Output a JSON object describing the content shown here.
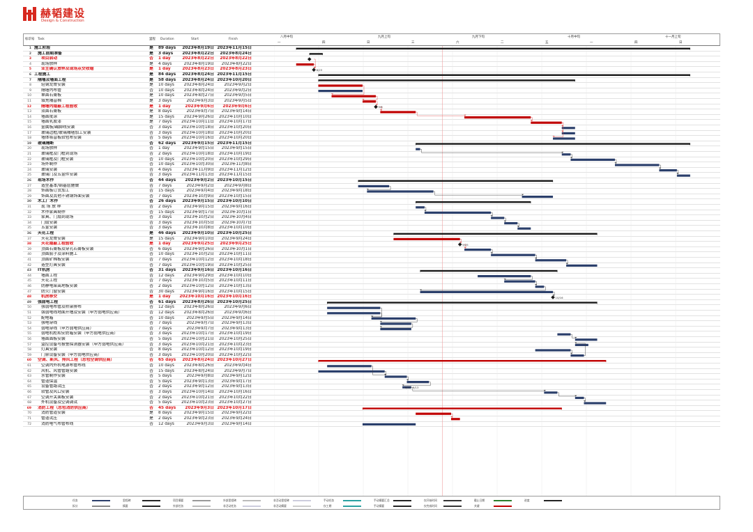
{
  "brand": {
    "name": "赫韬建设",
    "sub": "Design & Construction",
    "color": "#d7281e"
  },
  "headers": {
    "id": "标识号",
    "task": "Task",
    "ms": "里程",
    "duration": "Duration",
    "start": "Start",
    "finish": "Finish"
  },
  "timescale": {
    "top": [
      "八月中旬",
      "九月上旬",
      "九月下旬",
      "十月中旬",
      "十一月上旬"
    ],
    "bottom": [
      "一",
      "四",
      "日",
      "三",
      "六",
      "二",
      "五",
      "一",
      "四",
      "日"
    ]
  },
  "colors": {
    "normal": "#2b3f6b",
    "critical": "#c00000",
    "summary": "#1a1a1a",
    "link": "#444",
    "critlink": "#e05050",
    "today": "#c00000"
  },
  "rows": [
    {
      "id": "1",
      "name": "施工阶段",
      "ms": "是",
      "dur": "89 days",
      "start": "2023年8月19日",
      "finish": "2023年11月15日",
      "type": "summary"
    },
    {
      "id": "2",
      "name": "施工前期准备",
      "ms": "是",
      "dur": "3 days",
      "start": "2023年8月22日",
      "finish": "2023年8月24日",
      "type": "summary"
    },
    {
      "id": "3",
      "name": "项目启动",
      "ms": "否",
      "dur": "1 day",
      "start": "2023年8月22日",
      "finish": "2023年8月22日",
      "type": "critical"
    },
    {
      "id": "4",
      "name": "现场放样",
      "ms": "是",
      "dur": "4 days",
      "start": "2023年8月19日",
      "finish": "2023年8月22日",
      "type": "critical-task"
    },
    {
      "id": "5",
      "name": "业主确认放样及现场点交收缩",
      "ms": "是",
      "dur": "1 day",
      "start": "2023年8月23日",
      "finish": "2023年8月23日",
      "type": "critical"
    },
    {
      "id": "6",
      "name": "工程施工",
      "ms": "是",
      "dur": "84 days",
      "start": "2023年8月24日",
      "finish": "2023年11月15日",
      "type": "summary"
    },
    {
      "id": "7",
      "name": "隔墙及墙面工程",
      "ms": "是",
      "dur": "58 days",
      "start": "2023年8月24日",
      "finish": "2023年10月20日",
      "type": "summary"
    },
    {
      "id": "8",
      "name": "轻钢龙骨安装",
      "ms": "是",
      "dur": "10 days",
      "start": "2023年8月24日",
      "finish": "2023年9月2日",
      "type": "critical-task"
    },
    {
      "id": "9",
      "name": "隔墙内布管",
      "ms": "否",
      "dur": "10 days",
      "start": "2023年8月24日",
      "finish": "2023年9月2日",
      "type": "task"
    },
    {
      "id": "10",
      "name": "单面石膏板",
      "ms": "是",
      "dur": "10 days",
      "start": "2023年8月27日",
      "finish": "2023年9月5日",
      "type": "critical-task"
    },
    {
      "id": "11",
      "name": "填充隔音棉",
      "ms": "是",
      "dur": "3 days",
      "start": "2023年9月3日",
      "finish": "2023年9月5日",
      "type": "critical-task"
    },
    {
      "id": "12",
      "name": "隔墙内隐蔽工程验收",
      "ms": "是",
      "dur": "1 day",
      "start": "2023年9月6日",
      "finish": "2023年9月6日",
      "type": "critical"
    },
    {
      "id": "13",
      "name": "双面石膏板",
      "ms": "是",
      "dur": "8 days",
      "start": "2023年9月7日",
      "finish": "2023年9月14日",
      "type": "critical-task"
    },
    {
      "id": "14",
      "name": "墙面批涂",
      "ms": "是",
      "dur": "15 days",
      "start": "2023年9月26日",
      "finish": "2023年10月10日",
      "type": "critical-task"
    },
    {
      "id": "15",
      "name": "墙面乳胶漆",
      "ms": "是",
      "dur": "7 days",
      "start": "2023年10月11日",
      "finish": "2023年10月17日",
      "type": "critical-task"
    },
    {
      "id": "16",
      "name": "金属板/踢脚线安装",
      "ms": "否",
      "dur": "3 days",
      "start": "2023年10月18日",
      "finish": "2023年10月20日",
      "type": "task"
    },
    {
      "id": "17",
      "name": "玻璃边框/玻璃隔墙加工安装",
      "ms": "否",
      "dur": "3 days",
      "start": "2023年10月18日",
      "finish": "2023年10月20日",
      "type": "task"
    },
    {
      "id": "18",
      "name": "墙体吸音板软包布安装",
      "ms": "否",
      "dur": "5 days",
      "start": "2023年10月16日",
      "finish": "2023年10月20日",
      "type": "task"
    },
    {
      "id": "19",
      "name": "玻璃隔断",
      "ms": "否",
      "dur": "62 days",
      "start": "2023年9月15日",
      "finish": "2023年11月15日",
      "type": "summary"
    },
    {
      "id": "20",
      "name": "现场放样",
      "ms": "否",
      "dur": "1 day",
      "start": "2023年9月15日",
      "finish": "2023年9月15日",
      "type": "task"
    },
    {
      "id": "21",
      "name": "玻璃框及门框到现场",
      "ms": "否",
      "dur": "2 days",
      "start": "2023年10月18日",
      "finish": "2023年10月19日",
      "type": "task"
    },
    {
      "id": "22",
      "name": "玻璃框及门框安装",
      "ms": "否",
      "dur": "10 days",
      "start": "2023年10月20日",
      "finish": "2023年10月29日",
      "type": "task"
    },
    {
      "id": "23",
      "name": "场外制作",
      "ms": "否",
      "dur": "10 days",
      "start": "2023年10月30日",
      "finish": "2023年11月8日",
      "type": "task"
    },
    {
      "id": "24",
      "name": "玻璃安装",
      "ms": "否",
      "dur": "4 days",
      "start": "2023年11月9日",
      "finish": "2023年11月12日",
      "type": "task"
    },
    {
      "id": "25",
      "name": "玻璃门及五金件安装",
      "ms": "否",
      "dur": "3 days",
      "start": "2023年11月13日",
      "finish": "2023年11月15日",
      "type": "task"
    },
    {
      "id": "26",
      "name": "现场木作",
      "ms": "否",
      "dur": "44 days",
      "start": "2023年9月2日",
      "finish": "2023年10月15日",
      "type": "summary"
    },
    {
      "id": "27",
      "name": "造型基本/钢基层施做",
      "ms": "否",
      "dur": "7 days",
      "start": "2023年9月2日",
      "finish": "2023年9月8日",
      "type": "task"
    },
    {
      "id": "28",
      "name": "饰面板订货加工",
      "ms": "否",
      "dur": "15 days",
      "start": "2023年9月4日",
      "finish": "2023年9月18日",
      "type": "task"
    },
    {
      "id": "29",
      "name": "饰面及其他不锈钢饰面安装",
      "ms": "否",
      "dur": "7 days",
      "start": "2023年10月9日",
      "finish": "2023年10月15日",
      "type": "task"
    },
    {
      "id": "30",
      "name": "木工厂木作",
      "ms": "否",
      "dur": "26 days",
      "start": "2023年9月15日",
      "finish": "2023年10月10日",
      "type": "summary"
    },
    {
      "id": "31",
      "name": "现 场 放 样",
      "ms": "否",
      "dur": "2 days",
      "start": "2023年9月15日",
      "finish": "2023年9月16日",
      "type": "task"
    },
    {
      "id": "32",
      "name": "木作家具制作",
      "ms": "否",
      "dur": "15 days",
      "start": "2023年9月17日",
      "finish": "2023年10月1日",
      "type": "task"
    },
    {
      "id": "33",
      "name": "家具、门扇到现场",
      "ms": "否",
      "dur": "3 days",
      "start": "2023年10月2日",
      "finish": "2023年10月4日",
      "type": "task"
    },
    {
      "id": "34",
      "name": "门扇安装",
      "ms": "否",
      "dur": "3 days",
      "start": "2023年10月5日",
      "finish": "2023年10月7日",
      "type": "task"
    },
    {
      "id": "35",
      "name": "五金安装",
      "ms": "否",
      "dur": "3 days",
      "start": "2023年10月8日",
      "finish": "2023年10月10日",
      "type": "task"
    },
    {
      "id": "36",
      "name": "天花工程",
      "ms": "是",
      "dur": "46 days",
      "start": "2023年9月10日",
      "finish": "2023年10月25日",
      "type": "summary"
    },
    {
      "id": "37",
      "name": "天花龙骨安装",
      "ms": "是",
      "dur": "15 days",
      "start": "2023年9月10日",
      "finish": "2023年9月24日",
      "type": "critical-task"
    },
    {
      "id": "38",
      "name": "天花隐蔽工程验收",
      "ms": "是",
      "dur": "1 day",
      "start": "2023年9月25日",
      "finish": "2023年9月25日",
      "type": "critical"
    },
    {
      "id": "39",
      "name": "顶面石膏板及穿孔石膏板安装",
      "ms": "否",
      "dur": "6 days",
      "start": "2023年9月26日",
      "finish": "2023年10月1日",
      "type": "task"
    },
    {
      "id": "40",
      "name": "顶面腻子及涂料施工",
      "ms": "否",
      "dur": "10 days",
      "start": "2023年10月2日",
      "finish": "2023年10月11日",
      "type": "task"
    },
    {
      "id": "41",
      "name": "顶面矿棉板安装",
      "ms": "否",
      "dur": "7 days",
      "start": "2023年10月12日",
      "finish": "2023年10月18日",
      "type": "task"
    },
    {
      "id": "42",
      "name": "造型灯具安装",
      "ms": "否",
      "dur": "7 days",
      "start": "2023年10月19日",
      "finish": "2023年10月25日",
      "type": "task"
    },
    {
      "id": "43",
      "name": "IT机房",
      "ms": "否",
      "dur": "31 days",
      "start": "2023年9月16日",
      "finish": "2023年10月16日",
      "type": "summary"
    },
    {
      "id": "44",
      "name": "墙面工程",
      "ms": "否",
      "dur": "12 days",
      "start": "2023年9月29日",
      "finish": "2023年10月10日",
      "type": "task"
    },
    {
      "id": "45",
      "name": "天花工程",
      "ms": "否",
      "dur": "7 days",
      "start": "2023年10月5日",
      "finish": "2023年10月11日",
      "type": "task"
    },
    {
      "id": "46",
      "name": "防静电架高地板安装",
      "ms": "否",
      "dur": "2 days",
      "start": "2023年10月12日",
      "finish": "2023年10月13日",
      "type": "task"
    },
    {
      "id": "47",
      "name": "防火门窗安装",
      "ms": "否",
      "dur": "30 days",
      "start": "2023年9月16日",
      "finish": "2023年10月15日",
      "type": "task"
    },
    {
      "id": "48",
      "name": "机房移交",
      "ms": "是",
      "dur": "1 day",
      "start": "2023年10月16日",
      "finish": "2023年10月16日",
      "type": "critical"
    },
    {
      "id": "49",
      "name": "强弱电工程",
      "ms": "否",
      "dur": "61 days",
      "start": "2023年8月26日",
      "finish": "2023年10月25日",
      "type": "summary"
    },
    {
      "id": "50",
      "name": "强弱电布管及桥架排布",
      "ms": "否",
      "dur": "12 days",
      "start": "2023年8月26日",
      "finish": "2023年9月6日",
      "type": "task"
    },
    {
      "id": "51",
      "name": "强弱电线地面开槽及安装（甲方弱电供应商）",
      "ms": "否",
      "dur": "12 days",
      "start": "2023年8月26日",
      "finish": "2023年9月6日",
      "type": "task"
    },
    {
      "id": "52",
      "name": "配电箱",
      "ms": "否",
      "dur": "10 days",
      "start": "2023年9月5日",
      "finish": "2023年9月14日",
      "type": "task"
    },
    {
      "id": "53",
      "name": "强电穿线",
      "ms": "否",
      "dur": "7 days",
      "start": "2023年9月7日",
      "finish": "2023年9月13日",
      "type": "task"
    },
    {
      "id": "54",
      "name": "弱电穿线（甲方弱电供应商）",
      "ms": "否",
      "dur": "7 days",
      "start": "2023年9月7日",
      "finish": "2023年9月13日",
      "type": "task"
    },
    {
      "id": "55",
      "name": "弱电机柜和安防箱安装（甲方弱电供应商）",
      "ms": "否",
      "dur": "3 days",
      "start": "2023年10月17日",
      "finish": "2023年10月19日",
      "type": "task"
    },
    {
      "id": "56",
      "name": "墙面面板安装",
      "ms": "否",
      "dur": "5 days",
      "start": "2023年10月21日",
      "finish": "2023年10月25日",
      "type": "task"
    },
    {
      "id": "57",
      "name": "监控设备与报警探测器安装（甲方弱电供应商）",
      "ms": "否",
      "dur": "3 days",
      "start": "2023年10月21日",
      "finish": "2023年10月23日",
      "type": "task"
    },
    {
      "id": "58",
      "name": "灯具安装",
      "ms": "否",
      "dur": "8 days",
      "start": "2023年10月12日",
      "finish": "2023年10月19日",
      "type": "task"
    },
    {
      "id": "59",
      "name": "门禁设备安装（甲方弱电供应商）",
      "ms": "否",
      "dur": "3 days",
      "start": "2023年10月20日",
      "finish": "2023年10月22日",
      "type": "task"
    },
    {
      "id": "60",
      "name": "空调、新风、排风工程（总包空调供应商）",
      "ms": "否",
      "dur": "65 days",
      "start": "2023年8月24日",
      "finish": "2023年10月27日",
      "type": "red-summary"
    },
    {
      "id": "61",
      "name": "空调内外机电源布管布线",
      "ms": "否",
      "dur": "10 days",
      "start": "2023年8月26日",
      "finish": "2023年9月4日",
      "type": "task"
    },
    {
      "id": "62",
      "name": "风机、风管管路安装",
      "ms": "否",
      "dur": "15 days",
      "start": "2023年8月24日",
      "finish": "2023年9月7日",
      "type": "task"
    },
    {
      "id": "63",
      "name": "水管制作安装",
      "ms": "否",
      "dur": "5 days",
      "start": "2023年9月8日",
      "finish": "2023年9月12日",
      "type": "task"
    },
    {
      "id": "64",
      "name": "管道保温",
      "ms": "否",
      "dur": "5 days",
      "start": "2023年9月13日",
      "finish": "2023年9月17日",
      "type": "task"
    },
    {
      "id": "65",
      "name": "设备管路试压",
      "ms": "否",
      "dur": "2 days",
      "start": "2023年9月12日",
      "finish": "2023年9月13日",
      "type": "task"
    },
    {
      "id": "66",
      "name": "软管及风口安装",
      "ms": "否",
      "dur": "3 days",
      "start": "2023年10月14日",
      "finish": "2023年10月16日",
      "type": "task"
    },
    {
      "id": "67",
      "name": "空调开关面板安装",
      "ms": "否",
      "dur": "2 days",
      "start": "2023年10月21日",
      "finish": "2023年10月22日",
      "type": "task"
    },
    {
      "id": "68",
      "name": "外机设备及空调调试",
      "ms": "否",
      "dur": "5 days",
      "start": "2023年10月23日",
      "finish": "2023年10月27日",
      "type": "task"
    },
    {
      "id": "69",
      "name": "消防工程（总包消防供应商）",
      "ms": "否",
      "dur": "45 days",
      "start": "2023年9月3日",
      "finish": "2023年10月17日",
      "type": "red-summary"
    },
    {
      "id": "70",
      "name": "消防管道安装",
      "ms": "是",
      "dur": "8 days",
      "start": "2023年9月15日",
      "finish": "2023年9月22日",
      "type": "critical-task"
    },
    {
      "id": "71",
      "name": "管道试压",
      "ms": "是",
      "dur": "2 days",
      "start": "2023年9月23日",
      "finish": "2023年9月24日",
      "type": "critical-task"
    },
    {
      "id": "72",
      "name": "消防电气布管布线",
      "ms": "否",
      "dur": "12 days",
      "start": "2023年9月3日",
      "finish": "2023年9月14日",
      "type": "task"
    }
  ],
  "milestone_labels": [
    {
      "row": "5",
      "text": "8/23"
    },
    {
      "row": "12",
      "text": "9/6"
    },
    {
      "row": "38",
      "text": "9/25"
    },
    {
      "row": "48",
      "text": "10/16"
    },
    {
      "row": "65",
      "text": "9/12"
    },
    {
      "row": "65b",
      "text": "9/13"
    }
  ],
  "legend": [
    {
      "label": "任务",
      "kind": "bar-normal"
    },
    {
      "label": "拆分",
      "kind": "dotted"
    },
    {
      "label": "里程碑",
      "kind": "diamond"
    },
    {
      "label": "摘要",
      "kind": "summary"
    },
    {
      "label": "项目摘要",
      "kind": "summary-gray"
    },
    {
      "label": "外部任务",
      "kind": "bar-gray"
    },
    {
      "label": "外部里程碑",
      "kind": "diamond-gray"
    },
    {
      "label": "非活动任务",
      "kind": "bar-light"
    },
    {
      "label": "非活动里程碑",
      "kind": "diamond-light"
    },
    {
      "label": "非活动摘要",
      "kind": "summary-light"
    },
    {
      "label": "手动任务",
      "kind": "bar-teal"
    },
    {
      "label": "仅工期",
      "kind": "bar-teal"
    },
    {
      "label": "手动摘要汇总",
      "kind": "summary"
    },
    {
      "label": "手动摘要",
      "kind": "summary"
    },
    {
      "label": "仅开始时间",
      "kind": "bracket"
    },
    {
      "label": "仅完成时间",
      "kind": "bracket"
    },
    {
      "label": "截止日期",
      "kind": "arrow"
    },
    {
      "label": "关键",
      "kind": "bar-critical"
    },
    {
      "label": "进度",
      "kind": "bar-progress"
    }
  ]
}
